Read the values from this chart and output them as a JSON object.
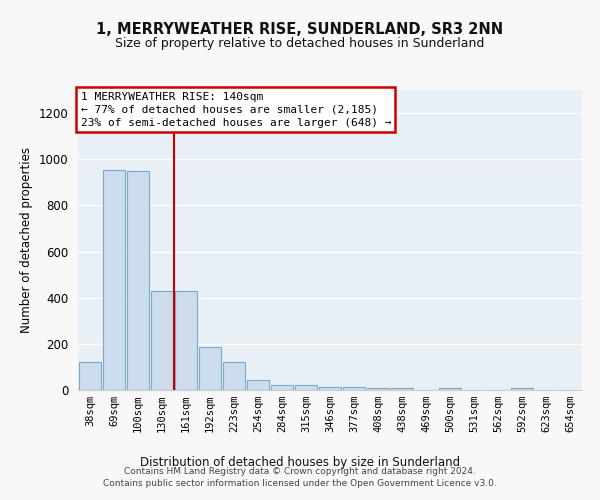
{
  "title": "1, MERRYWEATHER RISE, SUNDERLAND, SR3 2NN",
  "subtitle": "Size of property relative to detached houses in Sunderland",
  "xlabel": "Distribution of detached houses by size in Sunderland",
  "ylabel": "Number of detached properties",
  "bar_color": "#ccdcec",
  "bar_edge_color": "#7aaac8",
  "categories": [
    "38sqm",
    "69sqm",
    "100sqm",
    "130sqm",
    "161sqm",
    "192sqm",
    "223sqm",
    "254sqm",
    "284sqm",
    "315sqm",
    "346sqm",
    "377sqm",
    "408sqm",
    "438sqm",
    "469sqm",
    "500sqm",
    "531sqm",
    "562sqm",
    "592sqm",
    "623sqm",
    "654sqm"
  ],
  "values": [
    120,
    955,
    950,
    430,
    430,
    185,
    120,
    45,
    22,
    22,
    15,
    15,
    10,
    8,
    0,
    8,
    0,
    0,
    8,
    0,
    0
  ],
  "ylim": [
    0,
    1300
  ],
  "yticks": [
    0,
    200,
    400,
    600,
    800,
    1000,
    1200
  ],
  "red_line_x": 3.5,
  "annotation_text": "1 MERRYWEATHER RISE: 140sqm\n← 77% of detached houses are smaller (2,185)\n23% of semi-detached houses are larger (648) →",
  "annotation_box_color": "#ffffff",
  "annotation_box_edge": "#cc0000",
  "footer": "Contains HM Land Registry data © Crown copyright and database right 2024.\nContains public sector information licensed under the Open Government Licence v3.0.",
  "fig_bg_color": "#f8f8f8",
  "plot_bg_color": "#e8eff5",
  "grid_color": "#ffffff"
}
